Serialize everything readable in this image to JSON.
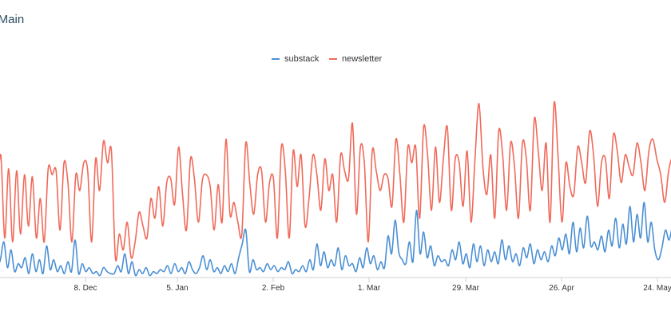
{
  "chart_data": {
    "type": "line",
    "title": "s Main",
    "xlabel": "",
    "ylabel": "",
    "x_ticks": [
      "8. Dec",
      "5. Jan",
      "2. Feb",
      "1. Mar",
      "29. Mar",
      "26. Apr",
      "24. May"
    ],
    "ylim": [
      0,
      100
    ],
    "grid": false,
    "legend_position": "top-center",
    "series": [
      {
        "name": "substack",
        "color": "#4a8fd4",
        "values": [
          4,
          9,
          18,
          5,
          14,
          3,
          7,
          5,
          10,
          2,
          12,
          3,
          9,
          2,
          16,
          4,
          9,
          3,
          6,
          2,
          8,
          3,
          19,
          2,
          7,
          3,
          5,
          2,
          3,
          1,
          5,
          3,
          2,
          2,
          6,
          3,
          12,
          2,
          8,
          1,
          4,
          2,
          5,
          1,
          3,
          2,
          4,
          3,
          6,
          2,
          7,
          3,
          5,
          2,
          8,
          4,
          2,
          5,
          11,
          4,
          9,
          3,
          5,
          2,
          6,
          3,
          7,
          2,
          10,
          17,
          24,
          3,
          9,
          4,
          5,
          3,
          7,
          4,
          6,
          3,
          5,
          4,
          8,
          2,
          4,
          3,
          6,
          3,
          9,
          4,
          17,
          6,
          13,
          5,
          9,
          6,
          15,
          4,
          11,
          6,
          7,
          3,
          10,
          5,
          15,
          7,
          11,
          4,
          8,
          5,
          21,
          12,
          29,
          13,
          9,
          7,
          18,
          8,
          34,
          12,
          23,
          10,
          16,
          6,
          11,
          8,
          9,
          6,
          14,
          9,
          18,
          7,
          12,
          5,
          17,
          8,
          16,
          6,
          14,
          8,
          13,
          7,
          19,
          9,
          16,
          8,
          12,
          6,
          15,
          10,
          17,
          7,
          14,
          9,
          13,
          8,
          16,
          11,
          20,
          14,
          22,
          12,
          28,
          13,
          25,
          15,
          31,
          16,
          18,
          14,
          21,
          13,
          24,
          16,
          30,
          15,
          27,
          17,
          36,
          18,
          32,
          20,
          38,
          18,
          28,
          14,
          9,
          15,
          24,
          19,
          27
        ]
      },
      {
        "name": "newsletter",
        "color": "#f06a5a",
        "values": [
          38,
          62,
          20,
          55,
          18,
          54,
          22,
          52,
          26,
          51,
          20,
          40,
          18,
          55,
          52,
          54,
          24,
          58,
          48,
          18,
          52,
          44,
          58,
          54,
          18,
          60,
          44,
          69,
          58,
          64,
          10,
          22,
          14,
          28,
          10,
          18,
          33,
          26,
          20,
          40,
          30,
          46,
          26,
          48,
          50,
          37,
          66,
          42,
          24,
          60,
          50,
          28,
          49,
          52,
          46,
          24,
          47,
          28,
          70,
          32,
          38,
          28,
          22,
          68,
          48,
          32,
          52,
          54,
          28,
          48,
          50,
          20,
          66,
          54,
          20,
          64,
          46,
          62,
          26,
          40,
          62,
          52,
          34,
          60,
          44,
          52,
          28,
          62,
          54,
          50,
          78,
          32,
          66,
          58,
          18,
          64,
          54,
          44,
          52,
          50,
          36,
          70,
          52,
          28,
          66,
          58,
          66,
          30,
          76,
          62,
          34,
          66,
          38,
          60,
          76,
          34,
          60,
          58,
          36,
          64,
          28,
          60,
          88,
          56,
          42,
          62,
          30,
          74,
          62,
          34,
          68,
          56,
          30,
          68,
          60,
          34,
          80,
          64,
          44,
          68,
          28,
          88,
          62,
          28,
          58,
          46,
          42,
          66,
          58,
          48,
          74,
          62,
          36,
          58,
          60,
          40,
          72,
          64,
          48,
          62,
          56,
          52,
          68,
          58,
          44,
          64,
          70,
          60,
          52,
          38,
          54,
          62
        ]
      }
    ]
  }
}
